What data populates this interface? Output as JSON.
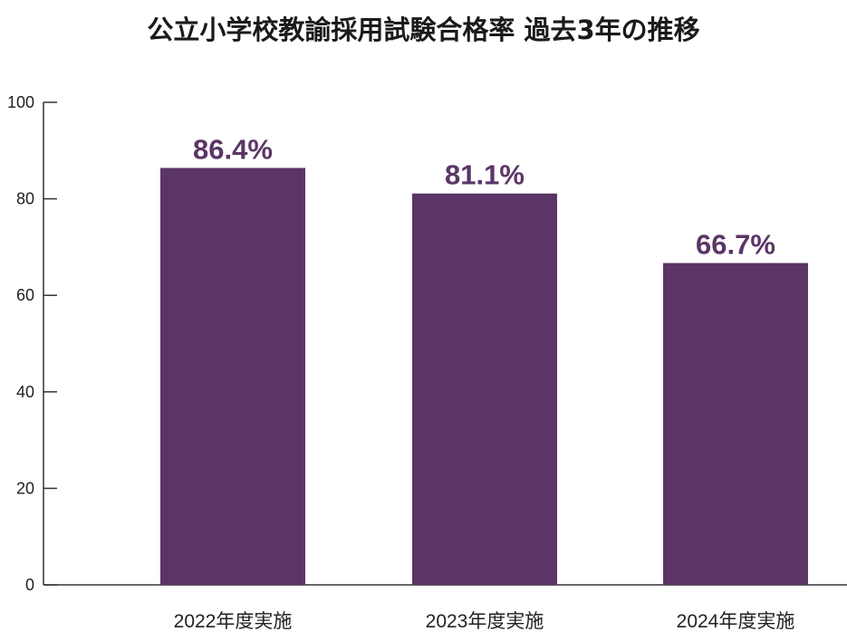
{
  "chart_data": {
    "type": "bar",
    "title": "公立小学校教諭採用試験合格率 過去3年の推移",
    "categories": [
      "2022年度実施",
      "2023年度実施",
      "2024年度実施"
    ],
    "values": [
      86.4,
      81.1,
      66.7
    ],
    "data_labels": [
      "86.4%",
      "81.1%",
      "66.7%"
    ],
    "xlabel": "",
    "ylabel": "",
    "ylim": [
      0,
      100
    ],
    "yticks": [
      0,
      20,
      40,
      60,
      80,
      100
    ],
    "ytick_labels": [
      "0",
      "20",
      "40",
      "60",
      "80",
      "100"
    ],
    "grid": false,
    "legend": "none",
    "colors": {
      "bar": "#5b3566",
      "data_label": "#5b3566",
      "axis": "#333333"
    }
  }
}
